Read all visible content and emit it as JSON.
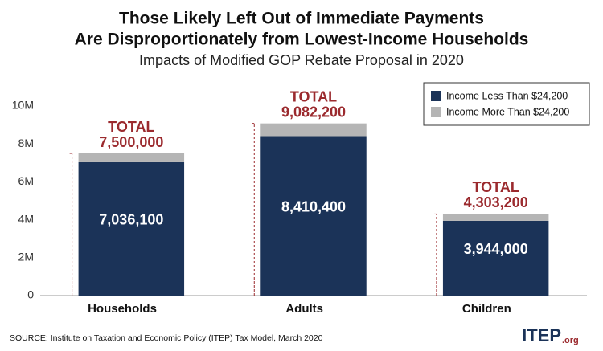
{
  "chart_data": {
    "type": "stacked_bar",
    "title": [
      "Those Likely Left Out of Immediate Payments",
      "Are Disproportionately from Lowest-Income Households"
    ],
    "subtitle": "Impacts of Modified GOP Rebate Proposal in 2020",
    "categories": [
      "Households",
      "Adults",
      "Children"
    ],
    "series": [
      {
        "name": "Income Less Than $24,200",
        "color": "#1b3358",
        "values": [
          7036100,
          8410400,
          3944000
        ],
        "value_labels": [
          "7,036,100",
          "8,410,400",
          "3,944,000"
        ]
      },
      {
        "name": "Income More Than $24,200",
        "color": "#b5b5b5",
        "values": [
          463900,
          671800,
          359200
        ]
      }
    ],
    "total_title": "TOTAL",
    "totals": [
      7500000,
      9082200,
      4303200
    ],
    "total_labels": [
      "7,500,000",
      "9,082,200",
      "4,303,200"
    ],
    "total_color": "#9b2a2e",
    "ylim": [
      0,
      10000000
    ],
    "yticks": [
      0,
      {
        "value": 2000000,
        "label": "2M"
      },
      {
        "value": 4000000,
        "label": "4M"
      },
      {
        "value": 6000000,
        "label": "6M"
      },
      {
        "value": 8000000,
        "label": "8M"
      },
      {
        "value": 10000000,
        "label": "10M"
      }
    ],
    "grid": false,
    "legend": "top-right",
    "source": "SOURCE: Institute on Taxation and Economic Policy (ITEP) Tax Model, March 2020",
    "logo": "ITEP",
    "logo_suffix": ".org"
  }
}
